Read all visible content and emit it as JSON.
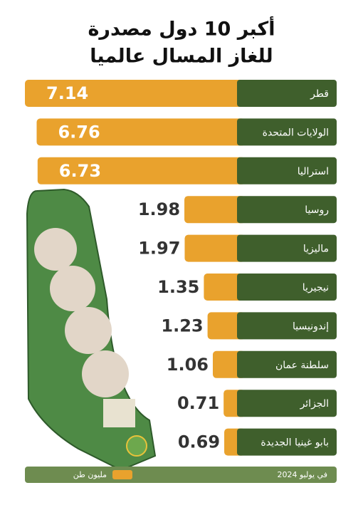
{
  "chart_data": {
    "type": "hbar",
    "title": [
      "أكبر 10 دول مصدرة",
      "للغاز المسال عالميا"
    ],
    "categories": [
      "قطر",
      "الولايات المتحدة",
      "استراليا",
      "روسيا",
      "ماليزيا",
      "نيجيريا",
      "إندونيسيا",
      "سلطنة عمان",
      "الجزائر",
      "بابو غينيا الجديدة"
    ],
    "series": [
      {
        "name": "مليون طن",
        "color": "#e9a22d",
        "values": [
          7.14,
          6.76,
          6.73,
          1.98,
          1.97,
          1.35,
          1.23,
          1.06,
          0.71,
          0.69
        ]
      }
    ],
    "label_color": "#3f5f2c",
    "note": "في يوليو 2024"
  }
}
